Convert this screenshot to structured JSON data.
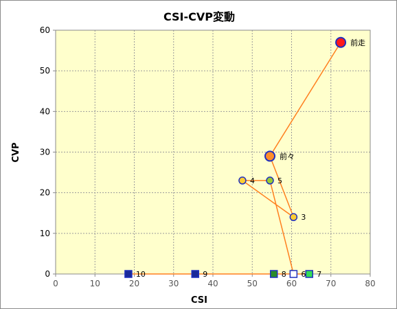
{
  "chart_data": {
    "type": "scatter",
    "title": "CSI-CVP変動",
    "xlabel": "CSI",
    "ylabel": "CVP",
    "xlim": [
      0,
      80
    ],
    "ylim": [
      0,
      60
    ],
    "xticks": [
      0,
      10,
      20,
      30,
      40,
      50,
      60,
      70,
      80
    ],
    "yticks": [
      0,
      10,
      20,
      30,
      40,
      50,
      60
    ],
    "grid": true,
    "legend": "none",
    "colors": {
      "plot_bg": "#ffffcc",
      "grid": "#9a9a9a",
      "line": "#ff7f1e",
      "marker_outline": "#1f2fbf"
    },
    "path_order": [
      "前走",
      "前々",
      "3",
      "4",
      "5",
      "6",
      "7",
      "8",
      "9",
      "10"
    ],
    "points": [
      {
        "label": "前走",
        "x": 72.5,
        "y": 57,
        "shape": "circle",
        "fill": "#ff1a1a"
      },
      {
        "label": "前々",
        "x": 54.5,
        "y": 29,
        "shape": "circle",
        "fill": "#ff8c2a"
      },
      {
        "label": "3",
        "x": 60.5,
        "y": 14,
        "shape": "circle",
        "fill": "#ffcc33"
      },
      {
        "label": "4",
        "x": 47.5,
        "y": 23,
        "shape": "circle",
        "fill": "#ffcc33"
      },
      {
        "label": "5",
        "x": 54.5,
        "y": 23,
        "shape": "circle",
        "fill": "#99cc33"
      },
      {
        "label": "6",
        "x": 60.5,
        "y": 0,
        "shape": "square",
        "fill": "#ffffff"
      },
      {
        "label": "7",
        "x": 64.5,
        "y": 0,
        "shape": "square",
        "fill": "#33dd55"
      },
      {
        "label": "8",
        "x": 55.5,
        "y": 0,
        "shape": "square",
        "fill": "#2a8a2a"
      },
      {
        "label": "9",
        "x": 35.5,
        "y": 0,
        "shape": "square",
        "fill": "#1a2a99"
      },
      {
        "label": "10",
        "x": 18.5,
        "y": 0,
        "shape": "square",
        "fill": "#1a2a99"
      }
    ]
  }
}
